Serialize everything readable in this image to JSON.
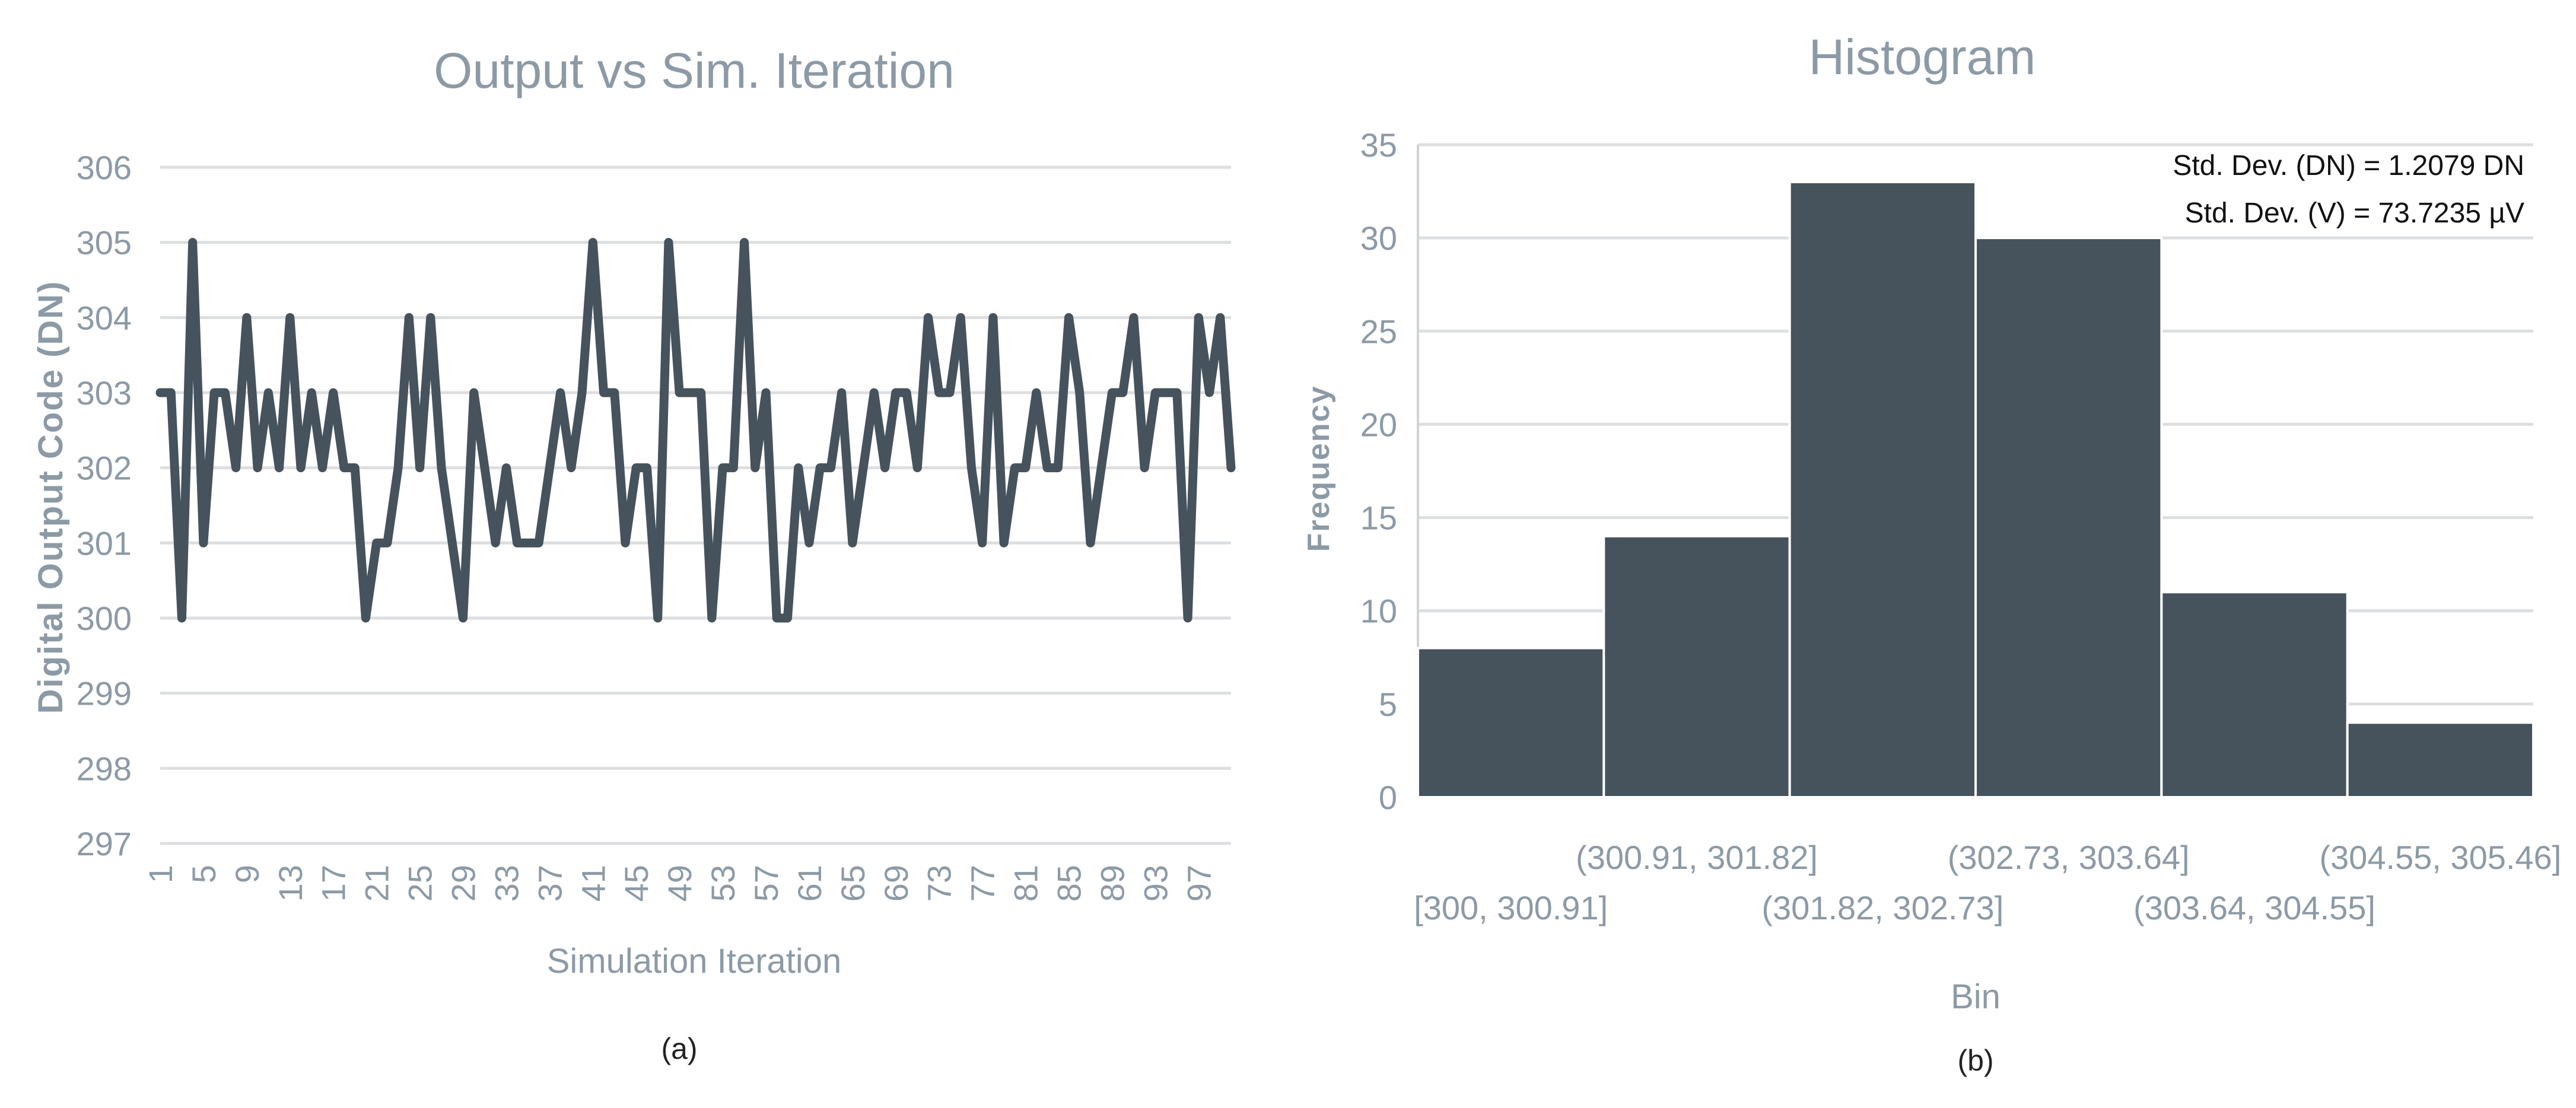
{
  "chart_data": [
    {
      "type": "line",
      "title": "Output vs Sim. Iteration",
      "xlabel": "Simulation Iteration",
      "ylabel": "Digital Output Code (DN)",
      "caption": "(a)",
      "ylim": [
        297,
        306
      ],
      "yticks": [
        "297",
        "298",
        "299",
        "300",
        "301",
        "302",
        "303",
        "304",
        "305",
        "306"
      ],
      "xticks": [
        "1",
        "5",
        "9",
        "13",
        "17",
        "21",
        "25",
        "29",
        "33",
        "37",
        "41",
        "45",
        "49",
        "53",
        "57",
        "61",
        "65",
        "69",
        "73",
        "77",
        "81",
        "85",
        "89",
        "93",
        "97"
      ],
      "x_range": [
        1,
        100
      ],
      "color": "#46525c",
      "series": [
        {
          "name": "Digital Output Code",
          "values": [
            303,
            303,
            300,
            305,
            301,
            303,
            303,
            302,
            304,
            302,
            303,
            302,
            304,
            302,
            303,
            302,
            303,
            302,
            302,
            300,
            301,
            301,
            302,
            304,
            302,
            304,
            302,
            301,
            300,
            303,
            302,
            301,
            302,
            301,
            301,
            301,
            302,
            303,
            302,
            303,
            305,
            303,
            303,
            301,
            302,
            302,
            300,
            305,
            303,
            303,
            303,
            300,
            302,
            302,
            305,
            302,
            303,
            300,
            300,
            302,
            301,
            302,
            302,
            303,
            301,
            302,
            303,
            302,
            303,
            303,
            302,
            304,
            303,
            303,
            304,
            302,
            301,
            304,
            301,
            302,
            302,
            303,
            302,
            302,
            304,
            303,
            301,
            302,
            303,
            303,
            304,
            302,
            303,
            303,
            303,
            300,
            304,
            303,
            304,
            302
          ]
        }
      ]
    },
    {
      "type": "bar",
      "title": "Histogram",
      "xlabel": "Bin",
      "ylabel": "Frequency",
      "caption": "(b)",
      "ylim": [
        0,
        35
      ],
      "yticks": [
        "0",
        "5",
        "10",
        "15",
        "20",
        "25",
        "30",
        "35"
      ],
      "categories": [
        "[300, 300.91]",
        "(300.91, 301.82]",
        "(301.82, 302.73]",
        "(302.73, 303.64]",
        "(303.64, 304.55]",
        "(304.55, 305.46]"
      ],
      "values": [
        8,
        14,
        33,
        30,
        11,
        4
      ],
      "color": "#46525c",
      "annotations": [
        "Std. Dev. (DN) = 1.2079 DN",
        "Std. Dev. (V) = 73.7235 µV"
      ]
    }
  ]
}
